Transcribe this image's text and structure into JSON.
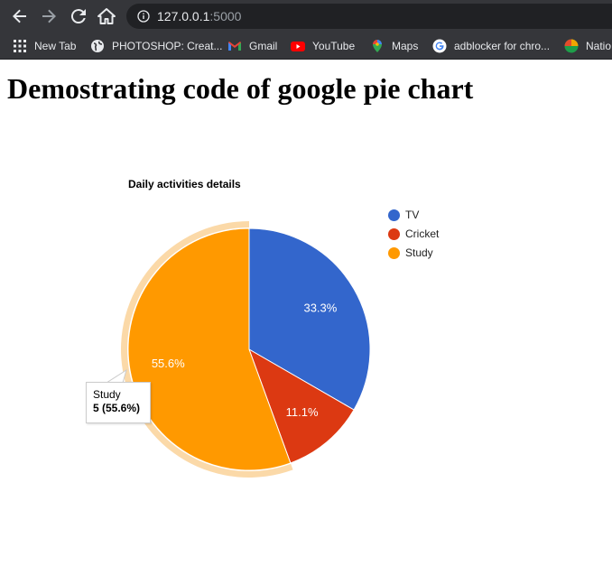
{
  "browser": {
    "url_host": "127.0.0.1",
    "url_port": ":5000",
    "bookmarks": [
      {
        "label": "New Tab",
        "icon": "apps-grid-icon"
      },
      {
        "label": "PHOTOSHOP: Creat...",
        "icon": "globe-icon"
      },
      {
        "label": "Gmail",
        "icon": "gmail-icon"
      },
      {
        "label": "YouTube",
        "icon": "youtube-icon"
      },
      {
        "label": "Maps",
        "icon": "maps-pin-icon"
      },
      {
        "label": "adblocker for chro...",
        "icon": "google-icon"
      },
      {
        "label": "Natio",
        "icon": "national-icon"
      }
    ]
  },
  "page": {
    "heading": "Demostrating code of google pie chart"
  },
  "tooltip": {
    "name": "Study",
    "value_text": "5 (55.6%)"
  },
  "colors": {
    "tv": "#3366cc",
    "cricket": "#dc3912",
    "study": "#ff9900",
    "highlight": "#fbd9a8"
  },
  "chart_data": {
    "type": "pie",
    "title": "Daily activities details",
    "categories": [
      "TV",
      "Cricket",
      "Study"
    ],
    "values": [
      3,
      1,
      5
    ],
    "slice_labels": [
      "33.3%",
      "11.1%",
      "55.6%"
    ],
    "legend_position": "right",
    "highlighted": "Study"
  }
}
